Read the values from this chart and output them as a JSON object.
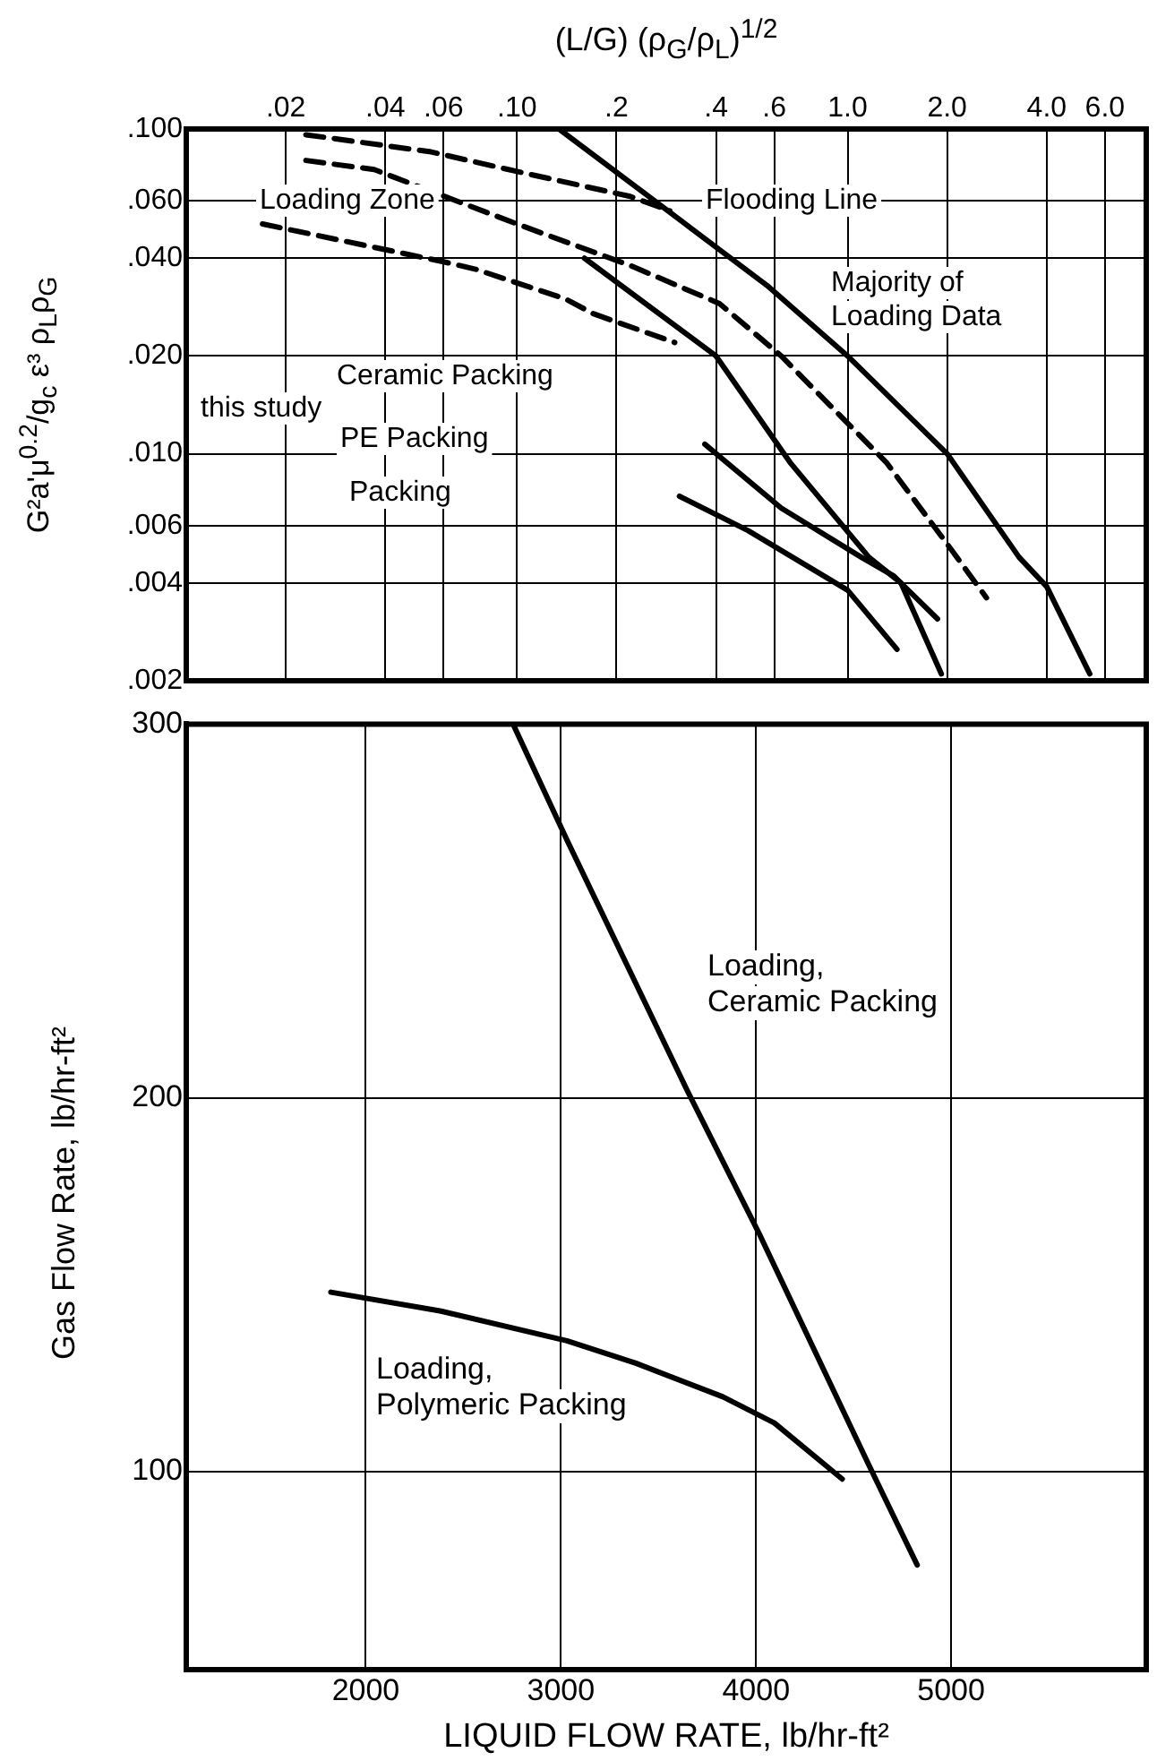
{
  "chart_data": [
    {
      "type": "line",
      "xlabel": "(L/G) (ρ$_{G}$/ρ$_{L}$)$^{1/2}$",
      "ylabel": "G²a'μ$^{0.2}$/g$_{c}$ ε³ ρ$_{L}$ρ$_{G}$",
      "log": "xy",
      "grid": true,
      "legend": false,
      "marker": "none",
      "xlim": [
        0.01,
        8
      ],
      "ylim": [
        0.002,
        0.1
      ],
      "xticks": [
        {
          "value": 0.02,
          "label": ".02"
        },
        {
          "value": 0.04,
          "label": ".04"
        },
        {
          "value": 0.06,
          "label": ".06"
        },
        {
          "value": 0.1,
          "label": ".10"
        },
        {
          "value": 0.2,
          "label": ".2"
        },
        {
          "value": 0.4,
          "label": ".4"
        },
        {
          "value": 0.6,
          "label": ".6"
        },
        {
          "value": 1,
          "label": "1.0"
        },
        {
          "value": 2,
          "label": "2.0"
        },
        {
          "value": 4,
          "label": "4.0"
        },
        {
          "value": 6,
          "label": "6.0"
        }
      ],
      "yticks": [
        {
          "value": 0.1,
          "label": ".100"
        },
        {
          "value": 0.06,
          "label": ".060"
        },
        {
          "value": 0.04,
          "label": ".040"
        },
        {
          "value": 0.02,
          "label": ".020"
        },
        {
          "value": 0.01,
          "label": ".010"
        },
        {
          "value": 0.006,
          "label": ".006"
        },
        {
          "value": 0.004,
          "label": ".004"
        },
        {
          "value": 0.002,
          "label": ".002"
        }
      ],
      "series": [
        {
          "color": "#000000",
          "line_style": "solid",
          "x": [
            0.134,
            0.57,
            1.0,
            2.0,
            3.3,
            4.0,
            5.4
          ],
          "values": [
            0.1,
            0.033,
            0.02,
            0.01,
            0.0048,
            0.0039,
            0.0021
          ]
        },
        {
          "color": "#000000",
          "line_style": "dashed",
          "x": [
            0.023,
            0.055,
            0.1,
            0.22,
            0.29
          ],
          "values": [
            0.096,
            0.085,
            0.074,
            0.062,
            0.056
          ]
        },
        {
          "color": "#000000",
          "line_style": "dashed",
          "x": [
            0.023,
            0.037,
            0.1,
            0.22,
            0.41,
            0.63,
            1.31,
            2.02,
            2.63
          ],
          "values": [
            0.08,
            0.075,
            0.051,
            0.038,
            0.029,
            0.02,
            0.0094,
            0.0052,
            0.0036
          ]
        },
        {
          "color": "#000000",
          "line_style": "dashed",
          "x": [
            0.017,
            0.034,
            0.06,
            0.075,
            0.14,
            0.17,
            0.3
          ],
          "values": [
            0.051,
            0.044,
            0.039,
            0.037,
            0.03,
            0.027,
            0.022
          ]
        },
        {
          "color": "#000000",
          "line_style": "solid",
          "x": [
            0.16,
            0.4,
            0.67,
            1.16,
            1.45,
            1.92
          ],
          "values": [
            0.04,
            0.02,
            0.0094,
            0.0048,
            0.004,
            0.0021
          ]
        },
        {
          "color": "#000000",
          "line_style": "solid",
          "x": [
            0.37,
            0.63,
            1.1,
            1.38,
            1.87
          ],
          "values": [
            0.0107,
            0.0068,
            0.0048,
            0.0042,
            0.0031
          ]
        },
        {
          "color": "#000000",
          "line_style": "solid",
          "x": [
            0.31,
            0.5,
            1.0,
            1.41
          ],
          "values": [
            0.0074,
            0.0058,
            0.0038,
            0.0025
          ]
        }
      ],
      "annotations": [
        "Loading Zone",
        "Flooding Line",
        "Majority of Loading Data",
        "this study",
        "Ceramic Packing",
        "PE Packing",
        "Packing"
      ]
    },
    {
      "type": "line",
      "xlabel": "LIQUID FLOW RATE, lb/hr-ft²",
      "ylabel": "Gas Flow Rate, lb/hr-ft²",
      "grid": true,
      "legend": false,
      "marker": "none",
      "xlim": [
        1080,
        6000
      ],
      "ylim": [
        47,
        300
      ],
      "xticks": [
        2000,
        3000,
        4000,
        5000
      ],
      "yticks": [
        100,
        200,
        300
      ],
      "series": [
        {
          "color": "#000000",
          "line_style": "solid",
          "x": [
            2755,
            3031,
            3647,
            4013,
            4576,
            4826
          ],
          "values": [
            300,
            269,
            202,
            164,
            102,
            75
          ]
        },
        {
          "color": "#000000",
          "line_style": "solid",
          "x": [
            1821,
            2380,
            3031,
            3384,
            3830,
            4094,
            4442
          ],
          "values": [
            148,
            143,
            135,
            129,
            120,
            113,
            98
          ]
        }
      ],
      "annotations": [
        "Loading, Ceramic Packing",
        "Loading, Polymeric Packing"
      ]
    }
  ]
}
